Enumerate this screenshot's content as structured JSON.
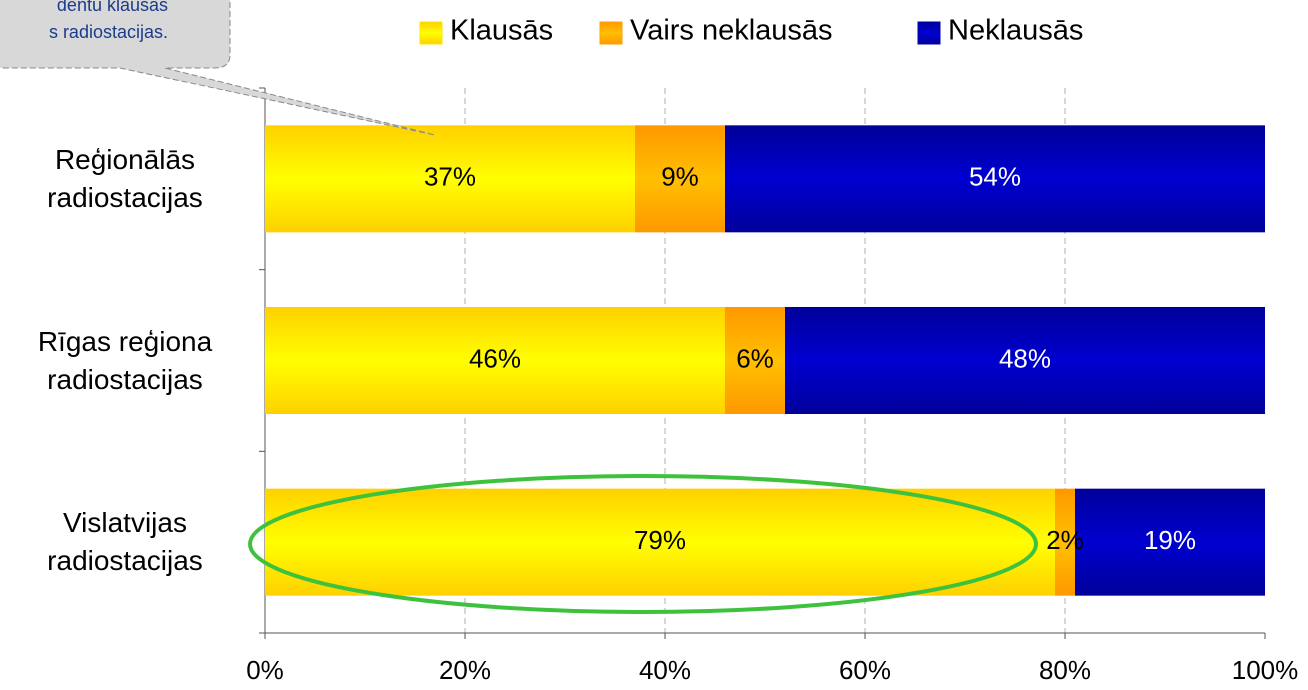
{
  "chart_data": {
    "type": "stacked-bar-horizontal",
    "annotation": [
      "dentu klausās",
      "s radiostacijas."
    ],
    "categories": [
      "Reģionālās radiostacijas",
      "Rīgas reģiona radiostacijas",
      "Vislatvijas radiostacijas"
    ],
    "series": [
      {
        "name": "Klausās",
        "color": "#ffe600",
        "values": [
          37,
          46,
          79
        ],
        "value_labels": [
          "37%",
          "46%",
          "79%"
        ]
      },
      {
        "name": "Vairs neklausās",
        "color": "#ffa200",
        "values": [
          9,
          6,
          2
        ],
        "value_labels": [
          "9%",
          "6%",
          "2%"
        ]
      },
      {
        "name": "Neklausās",
        "color": "#0000b4",
        "values": [
          54,
          48,
          19
        ],
        "value_labels": [
          "54%",
          "48%",
          "19%"
        ]
      }
    ],
    "xlim": [
      0,
      100
    ],
    "xticks": [
      {
        "value": 0,
        "label": "0%"
      },
      {
        "value": 20,
        "label": "20%"
      },
      {
        "value": 40,
        "label": "40%"
      },
      {
        "value": 60,
        "label": "60%"
      },
      {
        "value": 80,
        "label": "80%"
      },
      {
        "value": 100,
        "label": "100%"
      }
    ],
    "grid": true
  }
}
